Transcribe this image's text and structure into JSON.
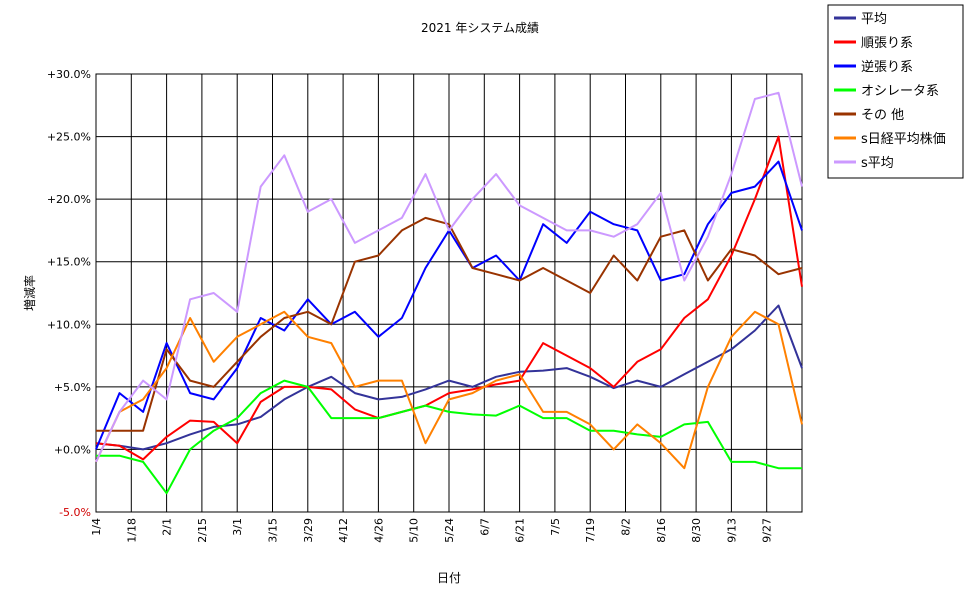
{
  "chart_data": {
    "type": "line",
    "title": "2021 年システム成績",
    "xlabel": "日付",
    "ylabel": "増減率",
    "ylim": [
      -5.0,
      30.0
    ],
    "y_ticks": [
      "-5.0%",
      "+0.0%",
      "+5.0%",
      "+10.0%",
      "+15.0%",
      "+20.0%",
      "+25.0%",
      "+30.0%"
    ],
    "y_tick_values": [
      -5,
      0,
      5,
      10,
      15,
      20,
      25,
      30
    ],
    "x_ticks": [
      "1/4",
      "1/18",
      "2/1",
      "2/15",
      "3/1",
      "3/15",
      "3/29",
      "4/12",
      "4/26",
      "5/10",
      "5/24",
      "6/7",
      "6/21",
      "7/5",
      "7/19",
      "8/2",
      "8/16",
      "8/30",
      "9/13",
      "9/27"
    ],
    "grid": true,
    "legend_position": "top-right",
    "series": [
      {
        "name": "平均",
        "color": "#333399",
        "values": [
          0.5,
          0.3,
          0.0,
          0.5,
          1.2,
          1.8,
          2.0,
          2.6,
          4.0,
          5.0,
          5.8,
          4.5,
          4.0,
          4.2,
          4.8,
          5.5,
          5.0,
          5.8,
          6.2,
          6.3,
          6.5,
          5.8,
          4.9,
          5.5,
          5.0,
          6.0,
          7.0,
          8.0,
          9.5,
          11.5,
          6.5
        ]
      },
      {
        "name": "順張り系",
        "color": "#ff0000",
        "values": [
          0.5,
          0.3,
          -0.8,
          1.0,
          2.3,
          2.2,
          0.5,
          3.8,
          5.0,
          5.0,
          4.8,
          3.2,
          2.5,
          3.0,
          3.5,
          4.5,
          4.8,
          5.2,
          5.5,
          8.5,
          7.5,
          6.5,
          5.0,
          7.0,
          8.0,
          10.5,
          12.0,
          15.5,
          20.0,
          25.0,
          13.0
        ]
      },
      {
        "name": "逆張り系",
        "color": "#0000ff",
        "values": [
          0.0,
          4.5,
          3.0,
          8.5,
          4.5,
          4.0,
          6.5,
          10.5,
          9.5,
          12.0,
          10.0,
          11.0,
          9.0,
          10.5,
          14.5,
          17.5,
          14.5,
          15.5,
          13.5,
          18.0,
          16.5,
          19.0,
          18.0,
          17.5,
          13.5,
          14.0,
          18.0,
          20.5,
          21.0,
          23.0,
          17.5
        ]
      },
      {
        "name": "オシレータ系",
        "color": "#00ff00",
        "values": [
          -0.5,
          -0.5,
          -1.0,
          -3.5,
          0.0,
          1.5,
          2.5,
          4.5,
          5.5,
          5.0,
          2.5,
          2.5,
          2.5,
          3.0,
          3.5,
          3.0,
          2.8,
          2.7,
          3.5,
          2.5,
          2.5,
          1.5,
          1.5,
          1.2,
          1.0,
          2.0,
          2.2,
          -1.0,
          -1.0,
          -1.5,
          -1.5
        ]
      },
      {
        "name": "その 他",
        "color": "#993300",
        "values": [
          1.5,
          1.5,
          1.5,
          8.0,
          5.5,
          5.0,
          7.0,
          9.0,
          10.5,
          11.0,
          10.0,
          15.0,
          15.5,
          17.5,
          18.5,
          18.0,
          14.5,
          14.0,
          13.5,
          14.5,
          13.5,
          12.5,
          15.5,
          13.5,
          17.0,
          17.5,
          13.5,
          16.0,
          15.5,
          14.0,
          14.5
        ]
      },
      {
        "name": "s日経平均株価",
        "color": "#ff8000",
        "values": [
          -1.0,
          3.0,
          4.0,
          6.5,
          10.5,
          7.0,
          9.0,
          10.0,
          11.0,
          9.0,
          8.5,
          5.0,
          5.5,
          5.5,
          0.5,
          4.0,
          4.5,
          5.5,
          6.0,
          3.0,
          3.0,
          2.0,
          0.0,
          2.0,
          0.5,
          -1.5,
          5.0,
          9.0,
          11.0,
          10.0,
          2.0
        ]
      },
      {
        "name": "s平均",
        "color": "#cc99ff",
        "values": [
          -1.0,
          3.0,
          5.5,
          4.0,
          12.0,
          12.5,
          11.0,
          21.0,
          23.5,
          19.0,
          20.0,
          16.5,
          17.5,
          18.5,
          22.0,
          17.5,
          20.0,
          22.0,
          19.5,
          18.5,
          17.5,
          17.5,
          17.0,
          18.0,
          20.5,
          13.5,
          17.0,
          22.0,
          28.0,
          28.5,
          21.0
        ]
      }
    ]
  }
}
